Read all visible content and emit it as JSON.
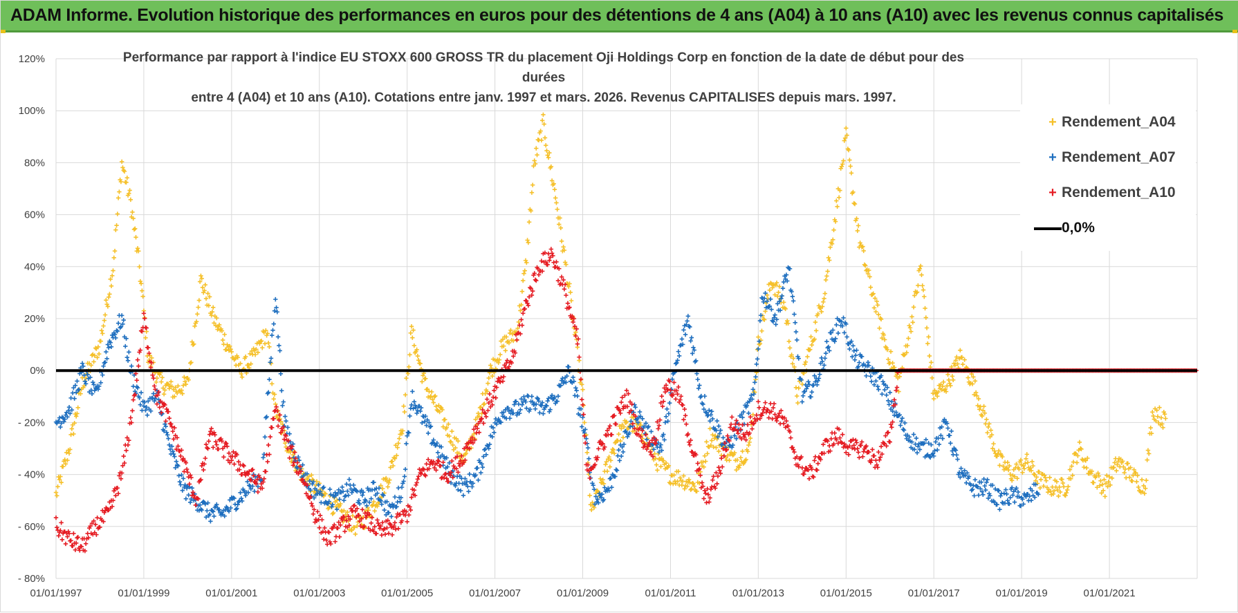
{
  "header": {
    "title": "ADAM Informe. Evolution historique des performances en euros pour des détentions de 4 ans (A04) à 10 ans (A10) avec les revenus connus capitalisés"
  },
  "colors": {
    "header_bg": "#6fbf5a",
    "a04": "#f5c02a",
    "a07": "#1f6fbf",
    "a10": "#e51c23",
    "zero_line": "#000000",
    "grid": "#d9d9d9"
  },
  "chart_data": {
    "type": "scatter",
    "title_line1": "Performance par rapport à l'indice EU STOXX 600 GROSS TR  du placement Oji Holdings Corp en fonction de la date de début pour des durées",
    "title_line2": "entre 4 (A04) et 10 ans (A10).  Cotations entre janv. 1997 et mars. 2026.  Revenus CAPITALISES depuis mars. 1997.",
    "xlabel": "",
    "ylabel": "",
    "x_range": [
      1997.0,
      2023.0
    ],
    "ylim": [
      -80,
      120
    ],
    "y_ticks": [
      {
        "value": 120,
        "label": "120%"
      },
      {
        "value": 100,
        "label": "100%"
      },
      {
        "value": 80,
        "label": "80%"
      },
      {
        "value": 60,
        "label": "60%"
      },
      {
        "value": 40,
        "label": "40%"
      },
      {
        "value": 20,
        "label": "20%"
      },
      {
        "value": 0,
        "label": "0%"
      },
      {
        "value": -20,
        "label": "- 20%"
      },
      {
        "value": -40,
        "label": "- 40%"
      },
      {
        "value": -60,
        "label": "- 60%"
      },
      {
        "value": -80,
        "label": "- 80%"
      }
    ],
    "x_ticks": [
      {
        "value": 1997.0,
        "label": "01/01/1997"
      },
      {
        "value": 1999.0,
        "label": "01/01/1999"
      },
      {
        "value": 2001.0,
        "label": "01/01/2001"
      },
      {
        "value": 2003.0,
        "label": "01/01/2003"
      },
      {
        "value": 2005.0,
        "label": "01/01/2005"
      },
      {
        "value": 2007.0,
        "label": "01/01/2007"
      },
      {
        "value": 2009.0,
        "label": "01/01/2009"
      },
      {
        "value": 2011.0,
        "label": "01/01/2011"
      },
      {
        "value": 2013.0,
        "label": "01/01/2013"
      },
      {
        "value": 2015.0,
        "label": "01/01/2015"
      },
      {
        "value": 2017.0,
        "label": "01/01/2017"
      },
      {
        "value": 2019.0,
        "label": "01/01/2019"
      },
      {
        "value": 2021.0,
        "label": "01/01/2021"
      }
    ],
    "grid": true,
    "legend_position": "top-right",
    "series": [
      {
        "name": "Rendement_A04",
        "marker": "+",
        "x": [
          1997.0,
          1997.3,
          1997.6,
          1998.0,
          1998.3,
          1998.5,
          1998.7,
          1998.9,
          1999.1,
          1999.4,
          1999.7,
          2000.0,
          2000.3,
          2000.6,
          2000.9,
          2001.2,
          2001.5,
          2001.8,
          2002.0,
          2002.3,
          2002.6,
          2002.9,
          2003.2,
          2003.5,
          2003.8,
          2004.0,
          2004.3,
          2004.6,
          2004.9,
          2005.1,
          2005.4,
          2005.7,
          2006.0,
          2006.3,
          2006.6,
          2006.9,
          2007.2,
          2007.5,
          2007.7,
          2007.9,
          2008.1,
          2008.4,
          2008.7,
          2009.0,
          2009.2,
          2009.5,
          2009.8,
          2010.1,
          2010.4,
          2010.7,
          2011.0,
          2011.3,
          2011.6,
          2011.9,
          2012.2,
          2012.5,
          2012.8,
          2013.0,
          2013.3,
          2013.6,
          2013.9,
          2014.2,
          2014.5,
          2014.8,
          2015.0,
          2015.3,
          2015.6,
          2015.9,
          2016.2,
          2016.5,
          2016.7,
          2017.0,
          2017.3,
          2017.6,
          2017.9,
          2018.2,
          2018.5,
          2018.8,
          2019.1,
          2019.4,
          2019.7,
          2020.0,
          2020.3,
          2020.6,
          2020.9,
          2021.2,
          2021.5,
          2021.8,
          2022.0,
          2022.3
        ],
        "y": [
          -48,
          -30,
          -5,
          10,
          40,
          80,
          65,
          40,
          5,
          -5,
          -8,
          -5,
          35,
          20,
          10,
          0,
          5,
          15,
          -15,
          -30,
          -40,
          -45,
          -50,
          -55,
          -60,
          -58,
          -50,
          -40,
          -20,
          15,
          -5,
          -15,
          -25,
          -35,
          -20,
          0,
          10,
          15,
          40,
          80,
          95,
          65,
          30,
          -10,
          -55,
          -40,
          -25,
          -20,
          -25,
          -35,
          -40,
          -42,
          -45,
          -25,
          -30,
          -35,
          -30,
          10,
          35,
          25,
          -10,
          10,
          30,
          65,
          90,
          50,
          30,
          10,
          -5,
          20,
          40,
          -10,
          -5,
          5,
          -5,
          -20,
          -35,
          -40,
          -35,
          -42,
          -45,
          -45,
          -30,
          -40,
          -45,
          -35,
          -40,
          -45,
          -15,
          -20
        ],
        "color_key": "a04"
      },
      {
        "name": "Rendement_A07",
        "marker": "+",
        "x": [
          1997.0,
          1997.3,
          1997.6,
          1997.9,
          1998.2,
          1998.5,
          1998.7,
          1999.0,
          1999.3,
          1999.6,
          1999.9,
          2000.2,
          2000.5,
          2000.8,
          2001.1,
          2001.4,
          2001.7,
          2002.0,
          2002.2,
          2002.5,
          2002.8,
          2003.1,
          2003.4,
          2003.7,
          2004.0,
          2004.3,
          2004.6,
          2004.9,
          2005.1,
          2005.4,
          2005.7,
          2006.0,
          2006.3,
          2006.6,
          2006.9,
          2007.2,
          2007.5,
          2007.8,
          2008.1,
          2008.4,
          2008.7,
          2009.0,
          2009.3,
          2009.6,
          2009.9,
          2010.2,
          2010.5,
          2010.8,
          2011.1,
          2011.4,
          2011.7,
          2012.0,
          2012.3,
          2012.6,
          2012.9,
          2013.1,
          2013.4,
          2013.7,
          2014.0,
          2014.3,
          2014.6,
          2014.9,
          2015.2,
          2015.5,
          2015.8,
          2016.1,
          2016.4,
          2016.7,
          2017.0,
          2017.3,
          2017.6,
          2017.9,
          2018.2,
          2018.5,
          2018.8,
          2019.1,
          2019.4
        ],
        "y": [
          -20,
          -15,
          0,
          -10,
          10,
          20,
          0,
          -15,
          -10,
          -30,
          -45,
          -50,
          -55,
          -55,
          -50,
          -45,
          -40,
          30,
          -20,
          -35,
          -45,
          -48,
          -50,
          -45,
          -50,
          -45,
          -55,
          -45,
          -10,
          -20,
          -30,
          -40,
          -45,
          -40,
          -25,
          -15,
          -15,
          -12,
          -15,
          -10,
          0,
          -20,
          -50,
          -45,
          -30,
          -15,
          -25,
          -30,
          0,
          20,
          -10,
          -20,
          -30,
          -20,
          -10,
          30,
          20,
          40,
          -10,
          -5,
          10,
          20,
          5,
          0,
          -5,
          -15,
          -25,
          -30,
          -30,
          -20,
          -40,
          -45,
          -45,
          -50,
          -48,
          -50,
          -45
        ],
        "color_key": "a07"
      },
      {
        "name": "Rendement_A10",
        "marker": "+",
        "x": [
          1997.0,
          1997.3,
          1997.6,
          1997.9,
          1998.2,
          1998.5,
          1998.7,
          1999.0,
          1999.3,
          1999.6,
          1999.9,
          2000.2,
          2000.5,
          2000.8,
          2001.1,
          2001.4,
          2001.7,
          2002.0,
          2002.3,
          2002.6,
          2002.9,
          2003.2,
          2003.5,
          2003.8,
          2004.1,
          2004.4,
          2004.7,
          2005.0,
          2005.3,
          2005.6,
          2005.9,
          2006.2,
          2006.5,
          2006.8,
          2007.1,
          2007.4,
          2007.7,
          2008.0,
          2008.3,
          2008.6,
          2008.9,
          2009.1,
          2009.4,
          2009.7,
          2010.0,
          2010.3,
          2010.6,
          2010.9,
          2011.2,
          2011.5,
          2011.8,
          2012.1,
          2012.4,
          2012.7,
          2013.0,
          2013.3,
          2013.6,
          2013.9,
          2014.2,
          2014.5,
          2014.8,
          2015.1,
          2015.4,
          2015.7,
          2016.0,
          2016.2
        ],
        "y": [
          -60,
          -65,
          -68,
          -60,
          -55,
          -40,
          -20,
          20,
          -10,
          -20,
          -35,
          -50,
          -25,
          -30,
          -35,
          -40,
          -45,
          -15,
          -30,
          -40,
          -55,
          -65,
          -60,
          -55,
          -58,
          -62,
          -60,
          -55,
          -40,
          -35,
          -40,
          -35,
          -25,
          -15,
          -5,
          5,
          25,
          40,
          45,
          30,
          10,
          -40,
          -30,
          -20,
          -10,
          -25,
          -30,
          -5,
          -10,
          -30,
          -50,
          -40,
          -20,
          -25,
          -15,
          -15,
          -20,
          -35,
          -40,
          -30,
          -25,
          -30,
          -30,
          -35,
          -25,
          0
        ],
        "color_key": "a10"
      },
      {
        "name": "Rendement_A10 (0% tail)",
        "marker": "+",
        "x_range": [
          2016.2,
          2023.0
        ],
        "y_constant": 0,
        "color_key": "a10"
      }
    ],
    "reference_line": {
      "name": "0,0%",
      "y": 0
    }
  },
  "legend": {
    "items": [
      {
        "label": "Rendement_A04",
        "symbol": "+"
      },
      {
        "label": "Rendement_A07",
        "symbol": "+"
      },
      {
        "label": "Rendement_A10",
        "symbol": "+"
      },
      {
        "label": "0,0%",
        "symbol": "line"
      }
    ]
  }
}
